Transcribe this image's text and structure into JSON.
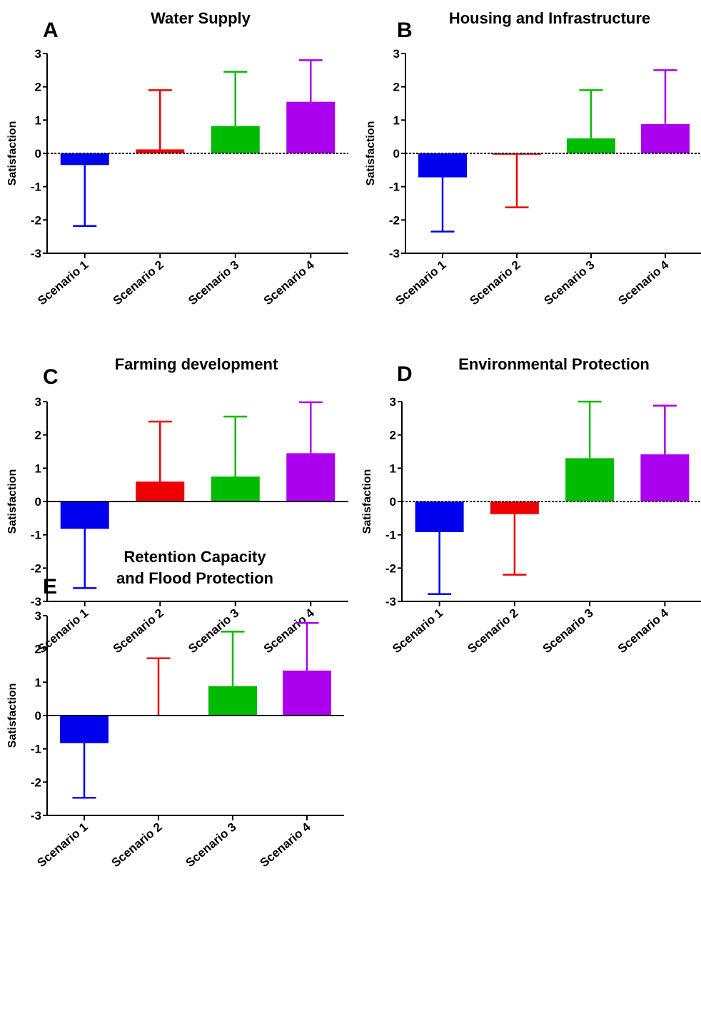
{
  "figure": {
    "background": "#ffffff"
  },
  "chart_data": [
    {
      "panel": "A",
      "type": "bar",
      "title": "Water Supply",
      "ylabel": "Satisfaction",
      "xlabel": "",
      "ylim": [
        -3,
        3
      ],
      "yticks": [
        -3,
        -2,
        -1,
        0,
        1,
        2,
        3
      ],
      "categories": [
        "Scenario 1",
        "Scenario 2",
        "Scenario 3",
        "Scenario 4"
      ],
      "values": [
        -0.35,
        0.12,
        0.82,
        1.55
      ],
      "error_ends": [
        -2.18,
        1.9,
        2.45,
        2.8
      ],
      "colors": [
        "#0000ee",
        "#ee0000",
        "#00bb00",
        "#aa00ee"
      ],
      "zero_line": "dashed",
      "grid": false
    },
    {
      "panel": "B",
      "type": "bar",
      "title": "Housing and Infrastructure",
      "ylabel": "Satisfaction",
      "xlabel": "",
      "ylim": [
        -3,
        3
      ],
      "yticks": [
        -3,
        -2,
        -1,
        0,
        1,
        2,
        3
      ],
      "categories": [
        "Scenario 1",
        "Scenario 2",
        "Scenario 3",
        "Scenario 4"
      ],
      "values": [
        -0.72,
        -0.04,
        0.45,
        0.88
      ],
      "error_ends": [
        -2.35,
        -1.62,
        1.9,
        2.5
      ],
      "colors": [
        "#0000ee",
        "#ee0000",
        "#00bb00",
        "#aa00ee"
      ],
      "zero_line": "dashed",
      "grid": false
    },
    {
      "panel": "C",
      "type": "bar",
      "title": "Farming development",
      "ylabel": "Satisfaction",
      "xlabel": "",
      "ylim": [
        -3,
        3
      ],
      "yticks": [
        -3,
        -2,
        -1,
        0,
        1,
        2,
        3
      ],
      "categories": [
        "Scenario 1",
        "Scenario 2",
        "Scenario 3",
        "Scenario 4"
      ],
      "values": [
        -0.82,
        0.6,
        0.75,
        1.45
      ],
      "error_ends": [
        -2.6,
        2.4,
        2.55,
        2.98
      ],
      "colors": [
        "#0000ee",
        "#ee0000",
        "#00bb00",
        "#aa00ee"
      ],
      "zero_line": "solid",
      "grid": false
    },
    {
      "panel": "D",
      "type": "bar",
      "title": "Environmental Protection",
      "ylabel": "Satisfaction",
      "xlabel": "",
      "ylim": [
        -3,
        3
      ],
      "yticks": [
        -3,
        -2,
        -1,
        0,
        1,
        2,
        3
      ],
      "categories": [
        "Scenario 1",
        "Scenario 2",
        "Scenario 3",
        "Scenario 4"
      ],
      "values": [
        -0.92,
        -0.38,
        1.3,
        1.42
      ],
      "error_ends": [
        -2.78,
        -2.2,
        3.0,
        2.88
      ],
      "colors": [
        "#0000ee",
        "#ee0000",
        "#00bb00",
        "#aa00ee"
      ],
      "zero_line": "dashed",
      "grid": false
    },
    {
      "panel": "E",
      "type": "bar",
      "title": "Retention Capacity\nand Flood Protection",
      "ylabel": "Satisfaction",
      "xlabel": "",
      "ylim": [
        -3,
        3
      ],
      "yticks": [
        -3,
        -2,
        -1,
        0,
        1,
        2,
        3
      ],
      "categories": [
        "Scenario 1",
        "Scenario 2",
        "Scenario 3",
        "Scenario 4"
      ],
      "values": [
        -0.83,
        0.0,
        0.88,
        1.35
      ],
      "error_ends": [
        -2.47,
        1.72,
        2.52,
        2.78
      ],
      "colors": [
        "#0000ee",
        "#ee0000",
        "#00bb00",
        "#aa00ee"
      ],
      "zero_line": "solid",
      "grid": false
    }
  ]
}
